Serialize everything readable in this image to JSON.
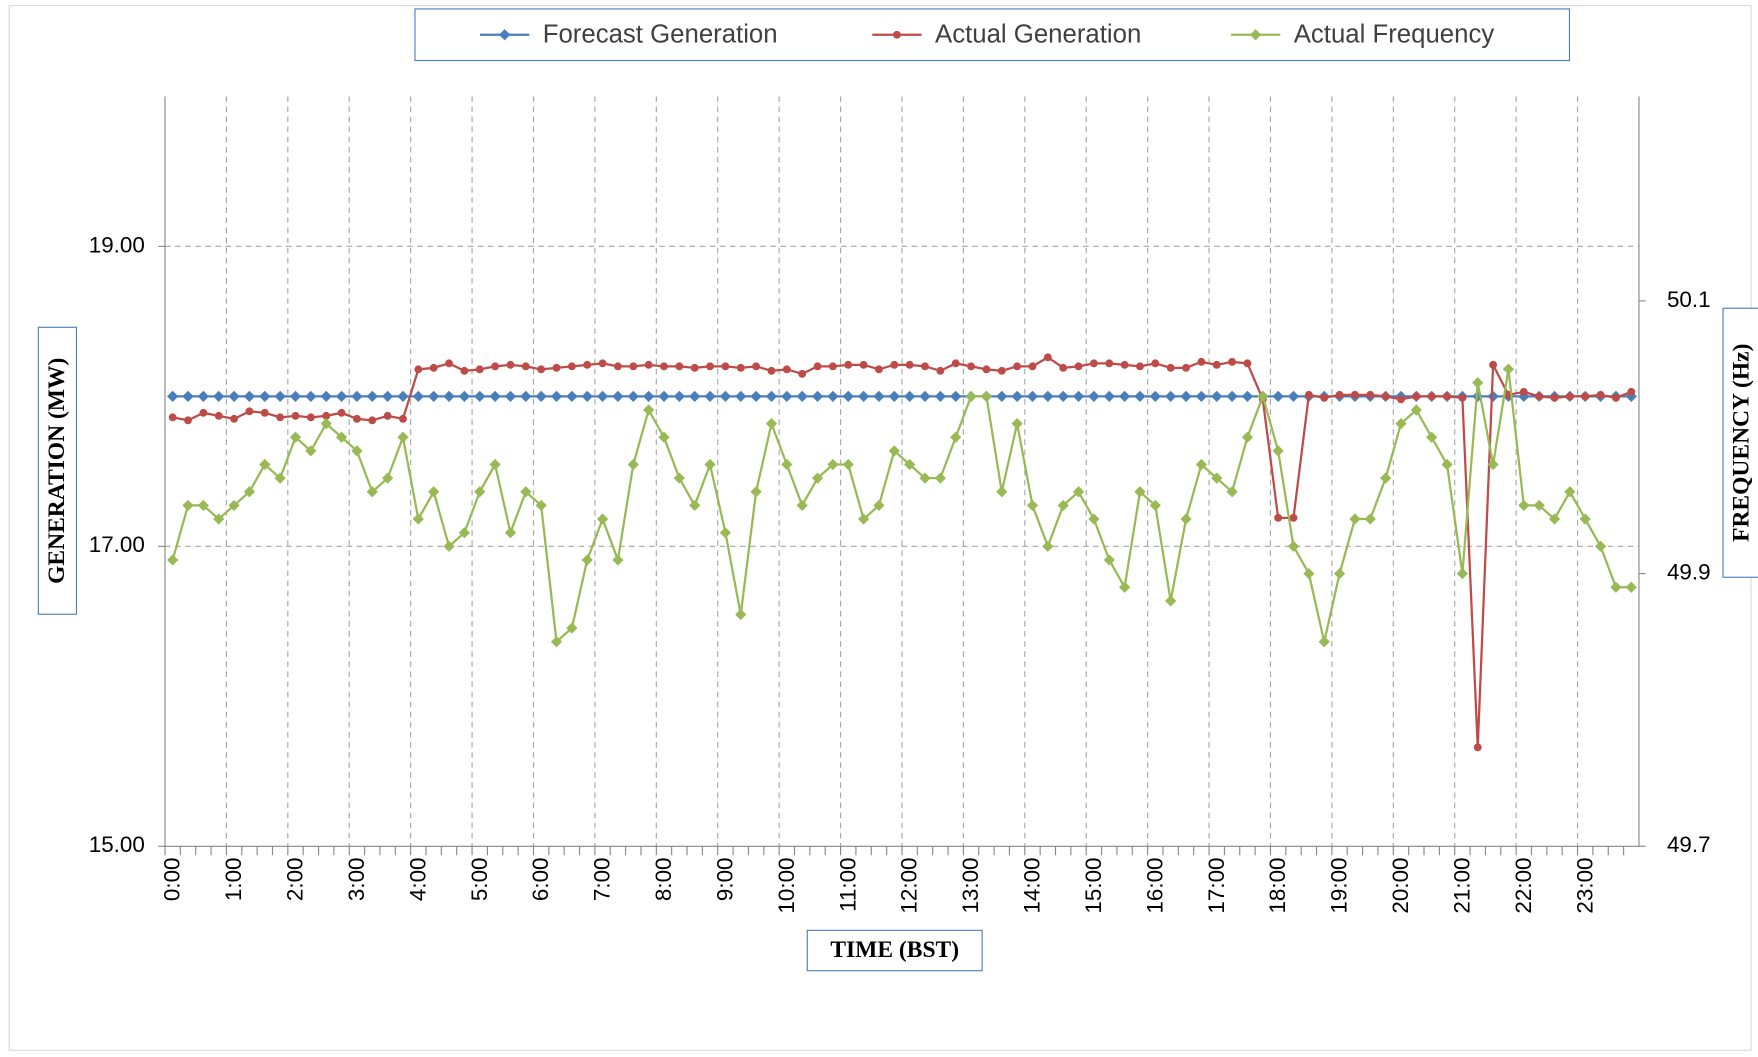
{
  "chart_data": {
    "type": "line",
    "categories": [
      "0:00",
      null,
      null,
      null,
      "1:00",
      null,
      null,
      null,
      "2:00",
      null,
      null,
      null,
      "3:00",
      null,
      null,
      null,
      "4:00",
      null,
      null,
      null,
      "5:00",
      null,
      null,
      null,
      "6:00",
      null,
      null,
      null,
      "7:00",
      null,
      null,
      null,
      "8:00",
      null,
      null,
      null,
      "9:00",
      null,
      null,
      null,
      "10:00",
      null,
      null,
      null,
      "11:00",
      null,
      null,
      null,
      "12:00",
      null,
      null,
      null,
      "13:00",
      null,
      null,
      null,
      "14:00",
      null,
      null,
      null,
      "15:00",
      null,
      null,
      null,
      "16:00",
      null,
      null,
      null,
      "17:00",
      null,
      null,
      null,
      "18:00",
      null,
      null,
      null,
      "19:00",
      null,
      null,
      null,
      "20:00",
      null,
      null,
      null,
      "21:00",
      null,
      null,
      null,
      "22:00",
      null,
      null,
      null,
      "23:00",
      null,
      null,
      null
    ],
    "series": [
      {
        "name": "Forecast Generation",
        "color": "#4a7ebb",
        "marker": "diamond",
        "values": [
          18,
          18,
          18,
          18,
          18,
          18,
          18,
          18,
          18,
          18,
          18,
          18,
          18,
          18,
          18,
          18,
          18,
          18,
          18,
          18,
          18,
          18,
          18,
          18,
          18,
          18,
          18,
          18,
          18,
          18,
          18,
          18,
          18,
          18,
          18,
          18,
          18,
          18,
          18,
          18,
          18,
          18,
          18,
          18,
          18,
          18,
          18,
          18,
          18,
          18,
          18,
          18,
          18,
          18,
          18,
          18,
          18,
          18,
          18,
          18,
          18,
          18,
          18,
          18,
          18,
          18,
          18,
          18,
          18,
          18,
          18,
          18,
          18,
          18,
          18,
          18,
          18,
          18,
          18,
          18,
          18,
          18,
          18,
          18,
          18,
          18,
          18,
          18,
          18,
          18,
          18,
          18,
          18,
          18,
          18,
          18
        ]
      },
      {
        "name": "Actual Generation",
        "color": "#be4b48",
        "marker": "circle",
        "values": [
          17.86,
          17.84,
          17.89,
          17.87,
          17.85,
          17.9,
          17.89,
          17.86,
          17.87,
          17.86,
          17.87,
          17.89,
          17.85,
          17.84,
          17.87,
          17.85,
          18.18,
          18.19,
          18.22,
          18.17,
          18.18,
          18.2,
          18.21,
          18.2,
          18.18,
          18.19,
          18.2,
          18.21,
          18.22,
          18.2,
          18.2,
          18.21,
          18.2,
          18.2,
          18.19,
          18.2,
          18.2,
          18.19,
          18.2,
          18.17,
          18.18,
          18.15,
          18.2,
          18.2,
          18.21,
          18.21,
          18.18,
          18.21,
          18.21,
          18.2,
          18.17,
          18.22,
          18.2,
          18.18,
          18.17,
          18.2,
          18.2,
          18.26,
          18.19,
          18.2,
          18.22,
          18.22,
          18.21,
          18.2,
          18.22,
          18.19,
          18.19,
          18.23,
          18.21,
          18.23,
          18.22,
          17.98,
          17.19,
          17.19,
          18.01,
          17.99,
          18.01,
          18.01,
          18.01,
          18.0,
          17.98,
          18.0,
          18.0,
          18.0,
          17.99,
          15.66,
          18.21,
          18.01,
          18.03,
          18.0,
          17.99,
          18.0,
          18.0,
          18.01,
          17.99,
          18.03
        ]
      },
      {
        "name": "Actual Frequency",
        "color": "#98b954",
        "marker": "diamond",
        "axis": "y2",
        "values": [
          49.91,
          49.95,
          49.95,
          49.94,
          49.95,
          49.96,
          49.98,
          49.97,
          50.0,
          49.99,
          50.01,
          50.0,
          49.99,
          49.96,
          49.97,
          50.0,
          49.94,
          49.96,
          49.92,
          49.93,
          49.96,
          49.98,
          49.93,
          49.96,
          49.95,
          49.85,
          49.86,
          49.91,
          49.94,
          49.91,
          49.98,
          50.02,
          50.0,
          49.97,
          49.95,
          49.98,
          49.93,
          49.87,
          49.96,
          50.01,
          49.98,
          49.95,
          49.97,
          49.98,
          49.98,
          49.94,
          49.95,
          49.99,
          49.98,
          49.97,
          49.97,
          50.0,
          50.03,
          50.03,
          49.96,
          50.01,
          49.95,
          49.92,
          49.95,
          49.96,
          49.94,
          49.91,
          49.89,
          49.96,
          49.95,
          49.88,
          49.94,
          49.98,
          49.97,
          49.96,
          50.0,
          50.03,
          49.99,
          49.92,
          49.9,
          49.85,
          49.9,
          49.94,
          49.94,
          49.97,
          50.01,
          50.02,
          50.0,
          49.98,
          49.9,
          50.04,
          49.98,
          50.05,
          49.95,
          49.95,
          49.94,
          49.96,
          49.94,
          49.92,
          49.89,
          49.89
        ]
      }
    ],
    "ylim": [
      15,
      20
    ],
    "yticks": [
      {
        "value": 15,
        "label": "15.00"
      },
      {
        "value": 17,
        "label": "17.00"
      },
      {
        "value": 19,
        "label": "19.00"
      }
    ],
    "y2lim": [
      49.7,
      50.25
    ],
    "y2ticks": [
      49.7,
      49.9,
      50.1
    ],
    "ylabel": "GENERATION (MW)",
    "y2label": "FREQUENCY (Hz)",
    "xlabel": "TIME (BST)",
    "grid": true,
    "legend": "top"
  }
}
